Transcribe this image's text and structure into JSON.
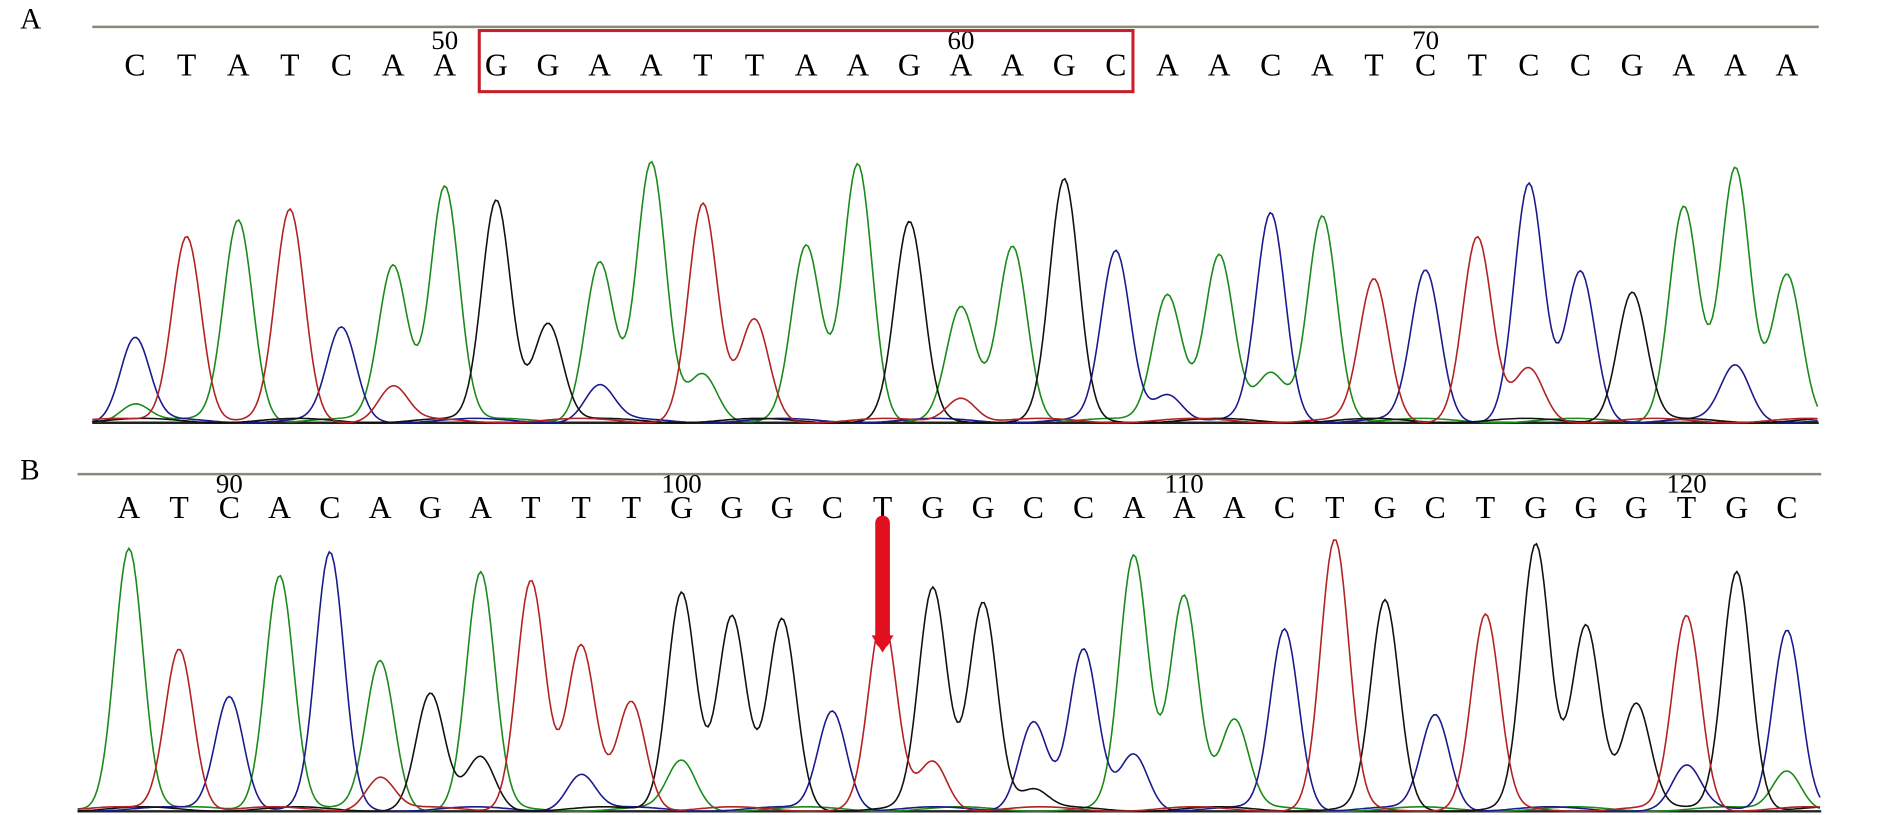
{
  "panels": [
    {
      "label": "A",
      "bases": [
        "C",
        "T",
        "A",
        "T",
        "C",
        "A",
        "A",
        "G",
        "G",
        "A",
        "A",
        "T",
        "T",
        "A",
        "A",
        "G",
        "A",
        "A",
        "G",
        "C",
        "A",
        "A",
        "C",
        "A",
        "T",
        "C",
        "T",
        "C",
        "C",
        "G",
        "A",
        "A",
        "A"
      ],
      "positions": [
        50,
        60,
        70
      ]
    },
    {
      "label": "B",
      "bases": [
        "A",
        "T",
        "C",
        "A",
        "C",
        "A",
        "G",
        "A",
        "T",
        "T",
        "T",
        "G",
        "G",
        "G",
        "C",
        "T",
        "G",
        "G",
        "C",
        "C",
        "A",
        "A",
        "A",
        "C",
        "T",
        "G",
        "C",
        "T",
        "G",
        "G",
        "G",
        "T",
        "G",
        "C"
      ],
      "positions": [
        90,
        100,
        110,
        120
      ]
    }
  ]
}
